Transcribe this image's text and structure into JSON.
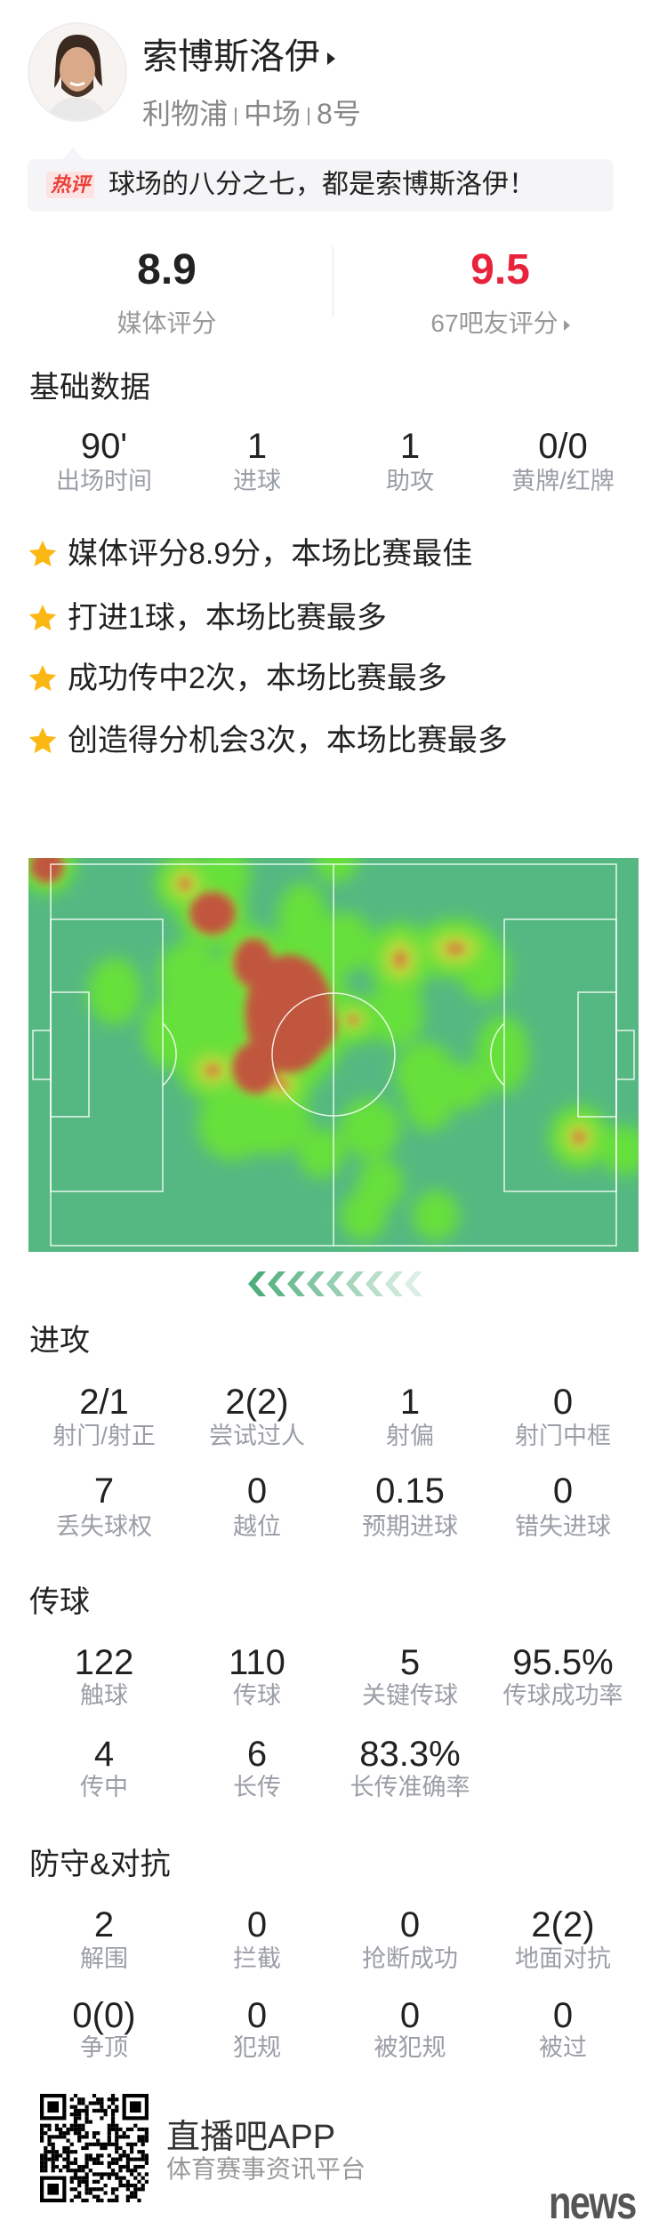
{
  "player": {
    "name": "索博斯洛伊",
    "team": "利物浦",
    "position": "中场",
    "number": "8号"
  },
  "comment": {
    "badge": "热评",
    "text": "球场的八分之七，都是索博斯洛伊！"
  },
  "ratings": {
    "media": {
      "value": "8.9",
      "label": "媒体评分",
      "color": "#222222"
    },
    "fans": {
      "value": "9.5",
      "label": "67吧友评分",
      "color": "#e8233c"
    }
  },
  "basic": {
    "title": "基础数据",
    "rows": [
      [
        {
          "value": "90'",
          "label": "出场时间"
        },
        {
          "value": "1",
          "label": "进球"
        },
        {
          "value": "1",
          "label": "助攻"
        },
        {
          "value": "0/0",
          "label": "黄牌/红牌"
        }
      ]
    ]
  },
  "highlights": [
    "媒体评分8.9分，本场比赛最佳",
    "打进1球，本场比赛最多",
    "成功传中2次，本场比赛最多",
    "创造得分机会3次，本场比赛最多"
  ],
  "heatmap": {
    "pitch_color": "#55b882",
    "icon": "heatmap-pitch"
  },
  "attack": {
    "title": "进攻",
    "rows": [
      [
        {
          "value": "2/1",
          "label": "射门/射正"
        },
        {
          "value": "2(2)",
          "label": "尝试过人"
        },
        {
          "value": "1",
          "label": "射偏"
        },
        {
          "value": "0",
          "label": "射门中框"
        }
      ],
      [
        {
          "value": "7",
          "label": "丢失球权"
        },
        {
          "value": "0",
          "label": "越位"
        },
        {
          "value": "0.15",
          "label": "预期进球"
        },
        {
          "value": "0",
          "label": "错失进球"
        }
      ]
    ]
  },
  "passing": {
    "title": "传球",
    "rows": [
      [
        {
          "value": "122",
          "label": "触球"
        },
        {
          "value": "110",
          "label": "传球"
        },
        {
          "value": "5",
          "label": "关键传球"
        },
        {
          "value": "95.5%",
          "label": "传球成功率"
        }
      ],
      [
        {
          "value": "4",
          "label": "传中"
        },
        {
          "value": "6",
          "label": "长传"
        },
        {
          "value": "83.3%",
          "label": "长传准确率"
        }
      ]
    ]
  },
  "defense": {
    "title": "防守&对抗",
    "rows": [
      [
        {
          "value": "2",
          "label": "解围"
        },
        {
          "value": "0",
          "label": "拦截"
        },
        {
          "value": "0",
          "label": "抢断成功"
        },
        {
          "value": "2(2)",
          "label": "地面对抗"
        }
      ],
      [
        {
          "value": "0(0)",
          "label": "争顶"
        },
        {
          "value": "0",
          "label": "犯规"
        },
        {
          "value": "0",
          "label": "被犯规"
        },
        {
          "value": "0",
          "label": "被过"
        }
      ]
    ]
  },
  "footer": {
    "app_name": "直播吧APP",
    "slogan": "体育赛事资讯平台",
    "watermark": "news"
  }
}
